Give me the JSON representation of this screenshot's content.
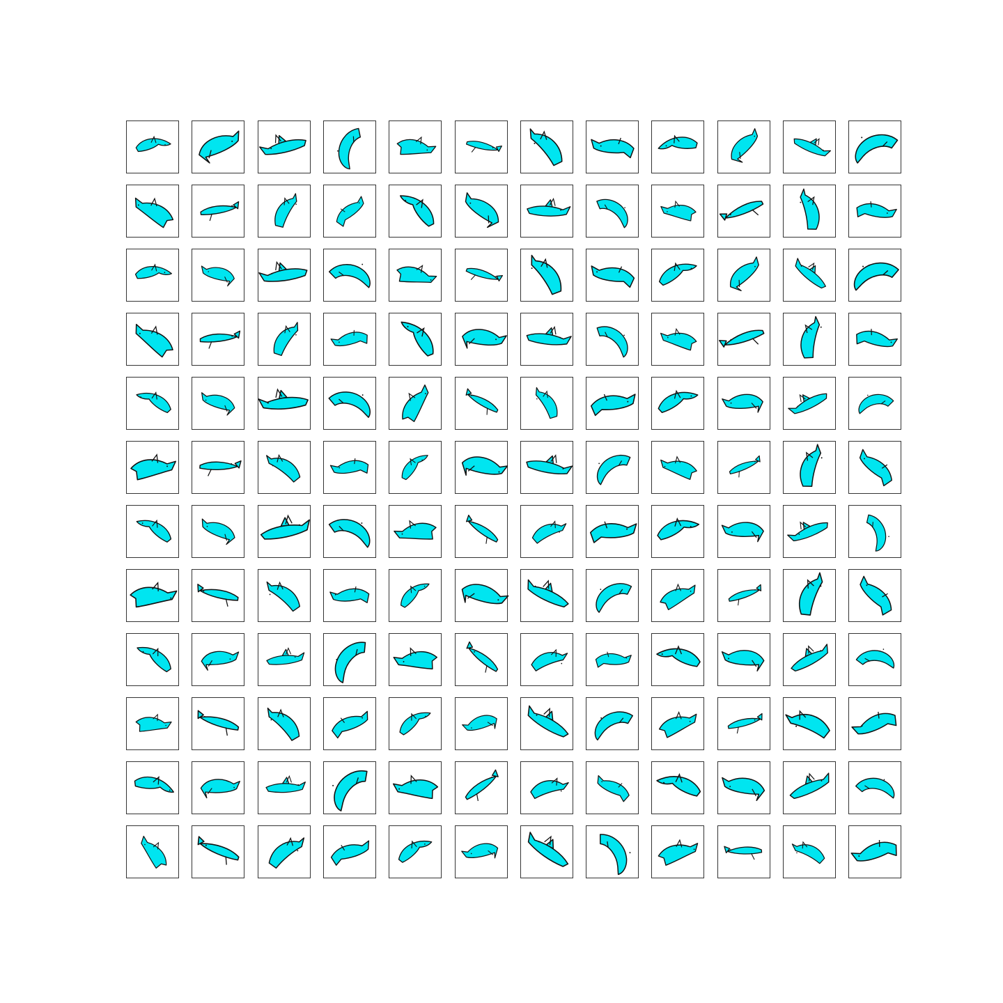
{
  "grid": {
    "rows": 12,
    "columns": 12,
    "subject": "dolphin-doodle",
    "fill_color": "#00e5f0",
    "stroke_color": "#111111",
    "border_color": "#333333",
    "background_color": "#ffffff"
  }
}
